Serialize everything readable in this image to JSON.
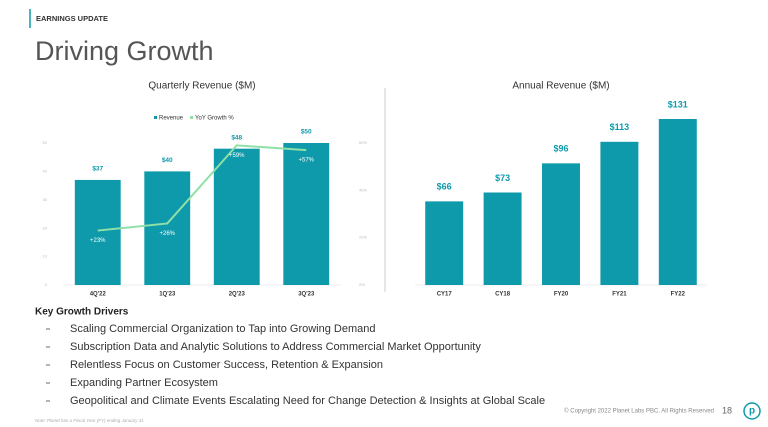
{
  "header": {
    "label": "EARNINGS UPDATE",
    "title": "Driving Growth"
  },
  "chart_data": [
    {
      "type": "bar",
      "title": "Quarterly Revenue ($M)",
      "categories": [
        "4Q'22",
        "1Q'23",
        "2Q'23",
        "3Q'23"
      ],
      "series": [
        {
          "name": "Revenue",
          "type": "bar",
          "color": "#0e9aab",
          "values": [
            37,
            40,
            48,
            50
          ],
          "value_labels": [
            "$37",
            "$40",
            "$48",
            "$50"
          ]
        },
        {
          "name": "YoY Growth %",
          "type": "line",
          "axis": "y2",
          "color": "#8fe0a6",
          "values": [
            23,
            26,
            59,
            57
          ],
          "value_labels": [
            "+23%",
            "+26%",
            "+59%",
            "+57%"
          ]
        }
      ],
      "ylim": [
        0,
        50
      ],
      "yticks": [
        0,
        10,
        20,
        30,
        40,
        50
      ],
      "y2lim": [
        0,
        60
      ],
      "y2ticks": [
        {
          "value": 0,
          "label": "0%"
        },
        {
          "value": 20,
          "label": "20%"
        },
        {
          "value": 40,
          "label": "40%"
        },
        {
          "value": 60,
          "label": "60%"
        }
      ],
      "legend": "top",
      "grid": false
    },
    {
      "type": "bar",
      "title": "Annual Revenue ($M)",
      "categories": [
        "CY17",
        "CY18",
        "FY20",
        "FY21",
        "FY22"
      ],
      "values": [
        66,
        73,
        96,
        113,
        131
      ],
      "value_labels": [
        "$66",
        "$73",
        "$96",
        "$113",
        "$131"
      ],
      "color": "#0e9aab",
      "grid": false
    }
  ],
  "drivers": {
    "title": "Key Growth Drivers",
    "items": [
      "Scaling Commercial Organization to Tap into Growing Demand",
      "Subscription Data and Analytic Solutions to Address Commercial Market Opportunity",
      "Relentless Focus on Customer Success, Retention & Expansion",
      "Expanding Partner Ecosystem",
      "Geopolitical and Climate Events Escalating Need for Change Detection & Insights at Global Scale"
    ]
  },
  "footer": {
    "note": "Note: Planet has a Fiscal Year (FY) ending January 31",
    "copyright": "© Copyright 2022 Planet Labs PBC. All Rights Reserved",
    "page": "18",
    "logo": "p"
  }
}
